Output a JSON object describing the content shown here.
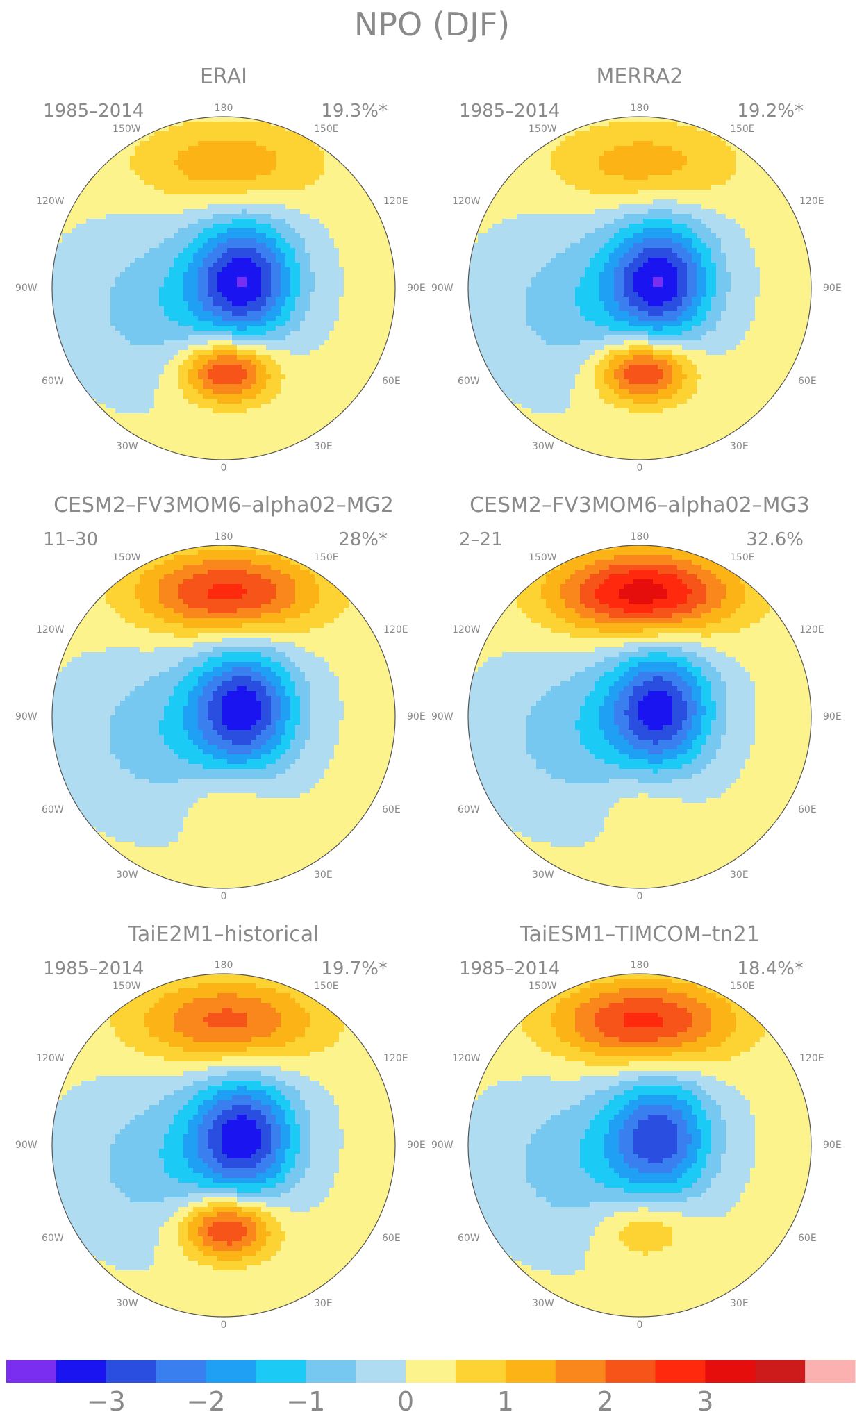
{
  "figure": {
    "title": "NPO (DJF)"
  },
  "longitude_labels": {
    "top": "180",
    "bottom": "0",
    "upper_left": "150W",
    "upper_right": "150E",
    "left_upper": "120W",
    "right_upper": "120E",
    "left": "90W",
    "right": "90E",
    "left_lower": "60W",
    "right_lower": "60E",
    "lower_left": "30W",
    "lower_right": "30E"
  },
  "panels": [
    {
      "id": "erai",
      "title": "ERAI",
      "period": "1985–2014",
      "variance": "19.3%*",
      "pattern": {
        "north_max": 1.3,
        "pole_min": -3.3,
        "south_max": 2.8
      }
    },
    {
      "id": "merra2",
      "title": "MERRA2",
      "period": "1985–2014",
      "variance": "19.2%*",
      "pattern": {
        "north_max": 1.2,
        "pole_min": -3.3,
        "south_max": 2.8
      }
    },
    {
      "id": "cesm2-mg2",
      "title": "CESM2–FV3MOM6–alpha02–MG2",
      "period": "11–30",
      "variance": "28%*",
      "pattern": {
        "north_max": 2.6,
        "pole_min": -3.2,
        "south_max": 0.6
      }
    },
    {
      "id": "cesm2-mg3",
      "title": "CESM2–FV3MOM6–alpha02–MG3",
      "period": "2–21",
      "variance": "32.6%",
      "pattern": {
        "north_max": 3.2,
        "pole_min": -3.1,
        "south_max": 0.5
      }
    },
    {
      "id": "taie2m1",
      "title": "TaiE2M1–historical",
      "period": "1985–2014",
      "variance": "19.7%*",
      "pattern": {
        "north_max": 2.1,
        "pole_min": -3.2,
        "south_max": 2.8
      }
    },
    {
      "id": "taiesm1-timcom",
      "title": "TaiESM1–TIMCOM–tn21",
      "period": "1985–2014",
      "variance": "18.4%*",
      "pattern": {
        "north_max": 2.6,
        "pole_min": -2.7,
        "south_max": 1.1
      }
    }
  ],
  "colorbar": {
    "colors": [
      "#7a2ff0",
      "#1a14f0",
      "#2a4ee0",
      "#3a7ff0",
      "#1fa0f5",
      "#1ccbf5",
      "#76c8f0",
      "#b0dcf2",
      "#fdf38c",
      "#fdd233",
      "#fbb316",
      "#fa871c",
      "#f7541a",
      "#ff2a0d",
      "#e60d0d",
      "#cd1a1a",
      "#fcb1b1"
    ],
    "tick_labels": [
      "−3",
      "−2",
      "−1",
      "0",
      "1",
      "2",
      "3"
    ]
  }
}
